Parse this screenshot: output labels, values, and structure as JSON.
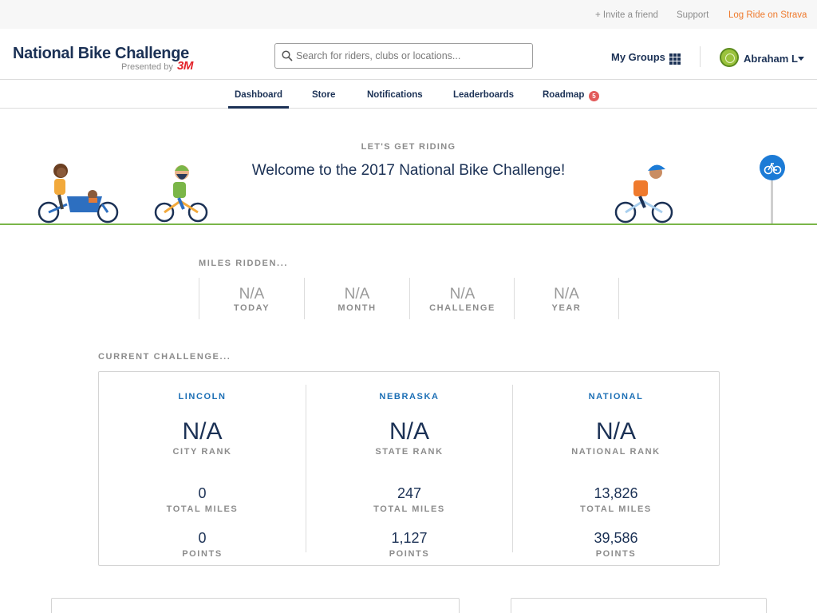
{
  "utility": {
    "invite": "+ Invite a friend",
    "support": "Support",
    "log_ride": "Log Ride on Strava"
  },
  "header": {
    "brand_title": "National Bike Challenge",
    "brand_presented": "Presented by",
    "brand_sponsor": "3M",
    "search_placeholder": "Search for riders, clubs or locations...",
    "my_groups": "My Groups",
    "user_name": "Abraham L"
  },
  "nav": {
    "tabs": [
      {
        "label": "Dashboard",
        "active": true
      },
      {
        "label": "Store"
      },
      {
        "label": "Notifications"
      },
      {
        "label": "Leaderboards"
      },
      {
        "label": "Roadmap"
      }
    ],
    "roadmap_badge": "5"
  },
  "hero": {
    "kicker": "LET'S GET RIDING",
    "title": "Welcome to the 2017 National Bike Challenge!"
  },
  "miles": {
    "label": "MILES RIDDEN...",
    "cells": [
      {
        "value": "N/A",
        "label": "TODAY"
      },
      {
        "value": "N/A",
        "label": "MONTH"
      },
      {
        "value": "N/A",
        "label": "CHALLENGE"
      },
      {
        "value": "N/A",
        "label": "YEAR"
      }
    ]
  },
  "challenge": {
    "label": "CURRENT CHALLENGE...",
    "columns": [
      {
        "title": "LINCOLN",
        "rank": "N/A",
        "rank_label": "CITY RANK",
        "miles": "0",
        "miles_label": "TOTAL MILES",
        "points": "0",
        "points_label": "POINTS"
      },
      {
        "title": "NEBRASKA",
        "rank": "N/A",
        "rank_label": "STATE RANK",
        "miles": "247",
        "miles_label": "TOTAL MILES",
        "points": "1,127",
        "points_label": "POINTS"
      },
      {
        "title": "NATIONAL",
        "rank": "N/A",
        "rank_label": "NATIONAL RANK",
        "miles": "13,826",
        "miles_label": "TOTAL MILES",
        "points": "39,586",
        "points_label": "POINTS"
      }
    ]
  },
  "colors": {
    "brand_navy": "#1b3155",
    "strava_orange": "#ef7a2d",
    "link_blue": "#1c6fb5",
    "ground_green": "#7ab648",
    "badge_red": "#e25b5b"
  },
  "icons": [
    "search-icon",
    "grid-icon",
    "avatar",
    "caret-down-icon",
    "bike-sign-icon"
  ]
}
